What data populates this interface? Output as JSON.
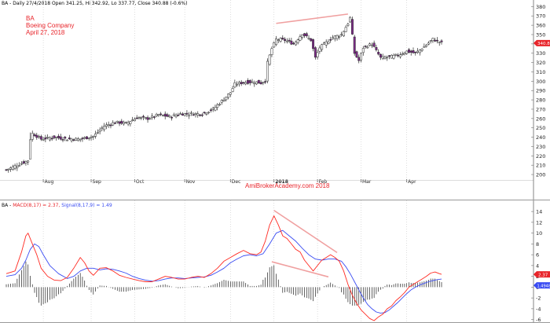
{
  "upper": {
    "header": "BA - Daily 27/4/2018 Open 341.25, Hi 342.92, Lo 337.77, Close 340.88 (-0.6%)",
    "symbol": "BA",
    "company": "Boeing Company",
    "date": "April 27, 2018",
    "watermark": "AmiBrokerAcademy.com  2018",
    "last_price_tag": "340.88"
  },
  "lower": {
    "header_prefix": "BA - ",
    "header_macd": "MACD(8,17) = 2.37,",
    "header_signal": "Signal(8,17,9) = 1.49",
    "macd_tag": "2.37",
    "signal_tag": "1.49484"
  },
  "colors": {
    "up": "#ffffff",
    "down": "#7b2a86",
    "macd": "#ff2a22",
    "signal": "#3a4cf2",
    "hist": "#222222",
    "annotation": "#f0a0a0",
    "accent": "#e8242a"
  },
  "chart_data": [
    {
      "type": "candlestick",
      "title": "BA - Daily 27/4/2018",
      "y_ticks": [
        200,
        210,
        220,
        230,
        240,
        250,
        260,
        270,
        280,
        290,
        300,
        310,
        320,
        330,
        340,
        350,
        360,
        370,
        380
      ],
      "ylim": [
        195,
        382
      ],
      "x_labels": [
        {
          "label": "Aug",
          "at": 17
        },
        {
          "label": "Sep",
          "at": 39
        },
        {
          "label": "Oct",
          "at": 59
        },
        {
          "label": "Nov",
          "at": 82
        },
        {
          "label": "Dec",
          "at": 103
        },
        {
          "label": "2018",
          "at": 123
        },
        {
          "label": "Feb",
          "at": 143
        },
        {
          "label": "Mar",
          "at": 163
        },
        {
          "label": "Apr",
          "at": 184
        }
      ],
      "anchors": [
        [
          0,
          205
        ],
        [
          8,
          213
        ],
        [
          10,
          215
        ],
        [
          11,
          238
        ],
        [
          12,
          244
        ],
        [
          16,
          238
        ],
        [
          22,
          240
        ],
        [
          28,
          238
        ],
        [
          34,
          238
        ],
        [
          40,
          241
        ],
        [
          45,
          252
        ],
        [
          50,
          256
        ],
        [
          55,
          255
        ],
        [
          60,
          261
        ],
        [
          65,
          260
        ],
        [
          70,
          264
        ],
        [
          75,
          262
        ],
        [
          80,
          265
        ],
        [
          85,
          265
        ],
        [
          90,
          265
        ],
        [
          95,
          270
        ],
        [
          100,
          281
        ],
        [
          103,
          288
        ],
        [
          105,
          297
        ],
        [
          110,
          299
        ],
        [
          115,
          299
        ],
        [
          117,
          298
        ],
        [
          119,
          301
        ],
        [
          120,
          320
        ],
        [
          122,
          335
        ],
        [
          124,
          345
        ],
        [
          128,
          344
        ],
        [
          132,
          340
        ],
        [
          136,
          351
        ],
        [
          140,
          344
        ],
        [
          142,
          325
        ],
        [
          144,
          336
        ],
        [
          150,
          347
        ],
        [
          154,
          350
        ],
        [
          157,
          362
        ],
        [
          158,
          368
        ],
        [
          160,
          330
        ],
        [
          162,
          322
        ],
        [
          164,
          336
        ],
        [
          168,
          340
        ],
        [
          172,
          325
        ],
        [
          176,
          326
        ],
        [
          180,
          328
        ],
        [
          184,
          332
        ],
        [
          188,
          330
        ],
        [
          192,
          337
        ],
        [
          196,
          345
        ],
        [
          200,
          341
        ]
      ],
      "annotations": [
        {
          "from": [
            124,
            362
          ],
          "to": [
            157,
            372
          ]
        }
      ]
    },
    {
      "type": "line",
      "title": "MACD(8,17), Signal(8,17,9)",
      "y_ticks": [
        -6,
        -4,
        -2,
        0,
        2,
        4,
        6,
        8,
        10,
        12,
        14
      ],
      "ylim": [
        -6.2,
        14.6
      ],
      "series": [
        {
          "name": "MACD(8,17)",
          "color": "#ff2a22",
          "points": [
            [
              0,
              2.5
            ],
            [
              4,
              3.0
            ],
            [
              7,
              6.5
            ],
            [
              9,
              9.5
            ],
            [
              10,
              10.0
            ],
            [
              12,
              8.0
            ],
            [
              14,
              6.0
            ],
            [
              16,
              3.5
            ],
            [
              19,
              2.0
            ],
            [
              22,
              1.3
            ],
            [
              25,
              1.2
            ],
            [
              28,
              1.8
            ],
            [
              31,
              3.5
            ],
            [
              34,
              5.5
            ],
            [
              36,
              4.5
            ],
            [
              38,
              3.0
            ],
            [
              40,
              2.2
            ],
            [
              43,
              3.5
            ],
            [
              46,
              3.6
            ],
            [
              49,
              3.0
            ],
            [
              52,
              2.2
            ],
            [
              55,
              1.8
            ],
            [
              58,
              1.5
            ],
            [
              61,
              1.2
            ],
            [
              64,
              1.0
            ],
            [
              67,
              1.0
            ],
            [
              70,
              1.5
            ],
            [
              73,
              2.0
            ],
            [
              76,
              1.8
            ],
            [
              79,
              1.5
            ],
            [
              82,
              1.5
            ],
            [
              85,
              1.8
            ],
            [
              88,
              2.0
            ],
            [
              91,
              1.8
            ],
            [
              94,
              2.5
            ],
            [
              97,
              3.5
            ],
            [
              100,
              4.8
            ],
            [
              103,
              5.5
            ],
            [
              106,
              6.2
            ],
            [
              109,
              6.8
            ],
            [
              112,
              6.2
            ],
            [
              115,
              6.0
            ],
            [
              117,
              6.5
            ],
            [
              119,
              8.5
            ],
            [
              121,
              11.5
            ],
            [
              123,
              13.2
            ],
            [
              125,
              11.5
            ],
            [
              127,
              9.5
            ],
            [
              129,
              9.0
            ],
            [
              131,
              8.0
            ],
            [
              133,
              7.0
            ],
            [
              135,
              6.5
            ],
            [
              137,
              5.0
            ],
            [
              139,
              4.0
            ],
            [
              141,
              3.0
            ],
            [
              143,
              4.0
            ],
            [
              145,
              5.0
            ],
            [
              147,
              5.5
            ],
            [
              149,
              6.0
            ],
            [
              151,
              5.5
            ],
            [
              153,
              4.8
            ],
            [
              155,
              3.0
            ],
            [
              157,
              0.5
            ],
            [
              159,
              -1.5
            ],
            [
              161,
              -3.0
            ],
            [
              163,
              -4.2
            ],
            [
              165,
              -5.0
            ],
            [
              167,
              -5.8
            ],
            [
              169,
              -6.2
            ],
            [
              171,
              -5.5
            ],
            [
              173,
              -5.0
            ],
            [
              175,
              -4.0
            ],
            [
              177,
              -3.5
            ],
            [
              179,
              -2.5
            ],
            [
              181,
              -1.8
            ],
            [
              183,
              -1.0
            ],
            [
              185,
              0.0
            ],
            [
              187,
              0.5
            ],
            [
              189,
              1.0
            ],
            [
              191,
              1.5
            ],
            [
              193,
              2.0
            ],
            [
              195,
              2.6
            ],
            [
              197,
              2.8
            ],
            [
              199,
              2.5
            ],
            [
              200,
              2.37
            ]
          ]
        },
        {
          "name": "Signal(8,17,9)",
          "color": "#3a4cf2",
          "points": [
            [
              0,
              2.0
            ],
            [
              4,
              2.3
            ],
            [
              7,
              3.5
            ],
            [
              9,
              5.0
            ],
            [
              11,
              7.0
            ],
            [
              13,
              8.0
            ],
            [
              15,
              7.5
            ],
            [
              17,
              6.0
            ],
            [
              20,
              4.0
            ],
            [
              24,
              2.5
            ],
            [
              28,
              1.6
            ],
            [
              31,
              2.0
            ],
            [
              34,
              3.0
            ],
            [
              37,
              3.5
            ],
            [
              40,
              3.5
            ],
            [
              43,
              3.2
            ],
            [
              46,
              3.4
            ],
            [
              49,
              3.3
            ],
            [
              52,
              3.0
            ],
            [
              55,
              2.6
            ],
            [
              58,
              2.0
            ],
            [
              61,
              1.6
            ],
            [
              64,
              1.3
            ],
            [
              67,
              1.1
            ],
            [
              70,
              1.2
            ],
            [
              73,
              1.5
            ],
            [
              76,
              1.7
            ],
            [
              79,
              1.7
            ],
            [
              82,
              1.6
            ],
            [
              85,
              1.7
            ],
            [
              88,
              1.8
            ],
            [
              91,
              1.9
            ],
            [
              94,
              2.2
            ],
            [
              97,
              2.8
            ],
            [
              100,
              3.5
            ],
            [
              103,
              4.5
            ],
            [
              106,
              5.2
            ],
            [
              109,
              5.8
            ],
            [
              112,
              6.0
            ],
            [
              115,
              5.8
            ],
            [
              118,
              6.2
            ],
            [
              121,
              8.0
            ],
            [
              124,
              10.0
            ],
            [
              127,
              10.5
            ],
            [
              130,
              9.5
            ],
            [
              133,
              8.5
            ],
            [
              136,
              7.2
            ],
            [
              139,
              6.0
            ],
            [
              142,
              5.2
            ],
            [
              145,
              5.0
            ],
            [
              148,
              5.2
            ],
            [
              151,
              5.2
            ],
            [
              154,
              4.8
            ],
            [
              156,
              3.8
            ],
            [
              158,
              2.5
            ],
            [
              160,
              1.0
            ],
            [
              162,
              -0.5
            ],
            [
              164,
              -2.0
            ],
            [
              166,
              -3.2
            ],
            [
              168,
              -4.0
            ],
            [
              170,
              -4.6
            ],
            [
              172,
              -4.8
            ],
            [
              174,
              -4.7
            ],
            [
              176,
              -4.2
            ],
            [
              178,
              -3.5
            ],
            [
              180,
              -2.8
            ],
            [
              182,
              -2.0
            ],
            [
              184,
              -1.2
            ],
            [
              186,
              -0.5
            ],
            [
              188,
              0.0
            ],
            [
              190,
              0.4
            ],
            [
              192,
              0.7
            ],
            [
              194,
              1.0
            ],
            [
              196,
              1.2
            ],
            [
              198,
              1.4
            ],
            [
              200,
              1.49
            ]
          ]
        }
      ],
      "annotations": [
        {
          "from": [
            123,
            14.2
          ],
          "to": [
            152,
            6.4
          ]
        },
        {
          "from": [
            122,
            4.7
          ],
          "to": [
            148,
            1.9
          ]
        }
      ]
    }
  ]
}
